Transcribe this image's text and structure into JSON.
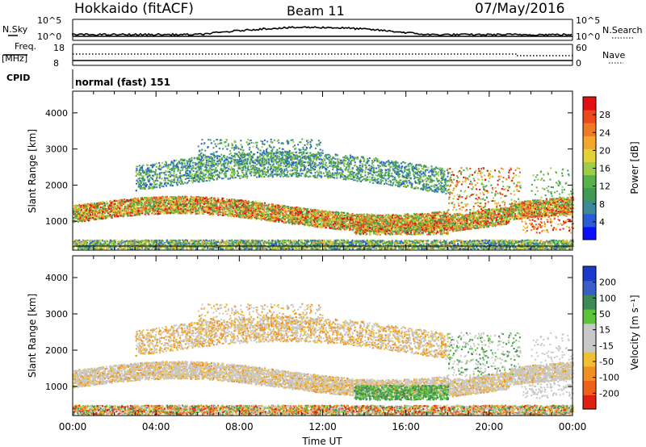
{
  "header": {
    "title": "Hokkaido (fitACF)",
    "beam": "Beam 11",
    "date": "07/May/2016"
  },
  "panels": {
    "sky_label": "N.Sky",
    "search_label": "N.Search",
    "sky_ticks": [
      "10^5",
      "10^0"
    ],
    "search_ticks": [
      "10^5",
      "10^0"
    ],
    "freq_label": "Freq.",
    "freq_unit": "[MHz]",
    "freq_ticks": [
      "18",
      "8"
    ],
    "nave_label": "Nave",
    "nave_ticks": [
      "60",
      "0"
    ],
    "cpid_label": "CPID",
    "cpid_value": "normal (fast) 151"
  },
  "chart_data": [
    {
      "type": "heatmap",
      "name": "power",
      "ylabel": "Slant Range [km]",
      "y_ticks": [
        1000,
        2000,
        3000,
        4000
      ],
      "ylim": [
        200,
        4600
      ],
      "xlim": [
        0,
        24
      ],
      "x_ticks": [
        "00:00",
        "04:00",
        "08:00",
        "12:00",
        "16:00",
        "20:00",
        "00:00"
      ],
      "colorbar": {
        "label": "Power [dB]",
        "ticks": [
          "28",
          "24",
          "20",
          "16",
          "12",
          "8",
          "4"
        ],
        "colors": [
          "#0a10ff",
          "#2a5bd8",
          "#3a8a9a",
          "#3f9a55",
          "#58b24a",
          "#9ccf45",
          "#e2d238",
          "#f3a82c",
          "#f07a24",
          "#ea4a1c",
          "#e21010"
        ]
      }
    },
    {
      "type": "heatmap",
      "name": "velocity",
      "ylabel": "Slant Range [km]",
      "y_ticks": [
        1000,
        2000,
        3000,
        4000
      ],
      "ylim": [
        200,
        4600
      ],
      "xlim": [
        0,
        24
      ],
      "xlabel": "Time UT",
      "x_ticks": [
        "00:00",
        "04:00",
        "08:00",
        "12:00",
        "16:00",
        "20:00",
        "00:00"
      ],
      "colorbar": {
        "label": "Velocity [m s⁻¹]",
        "ticks": [
          "200",
          "100",
          "50",
          "15",
          "-15",
          "-50",
          "-100",
          "-200"
        ],
        "colors": [
          "#1a3acc",
          "#3a5ec8",
          "#3e8a56",
          "#5cc43a",
          "#c8c8c8",
          "#c8c8c8",
          "#f0c030",
          "#f09020",
          "#f06018",
          "#e02010"
        ]
      }
    }
  ]
}
